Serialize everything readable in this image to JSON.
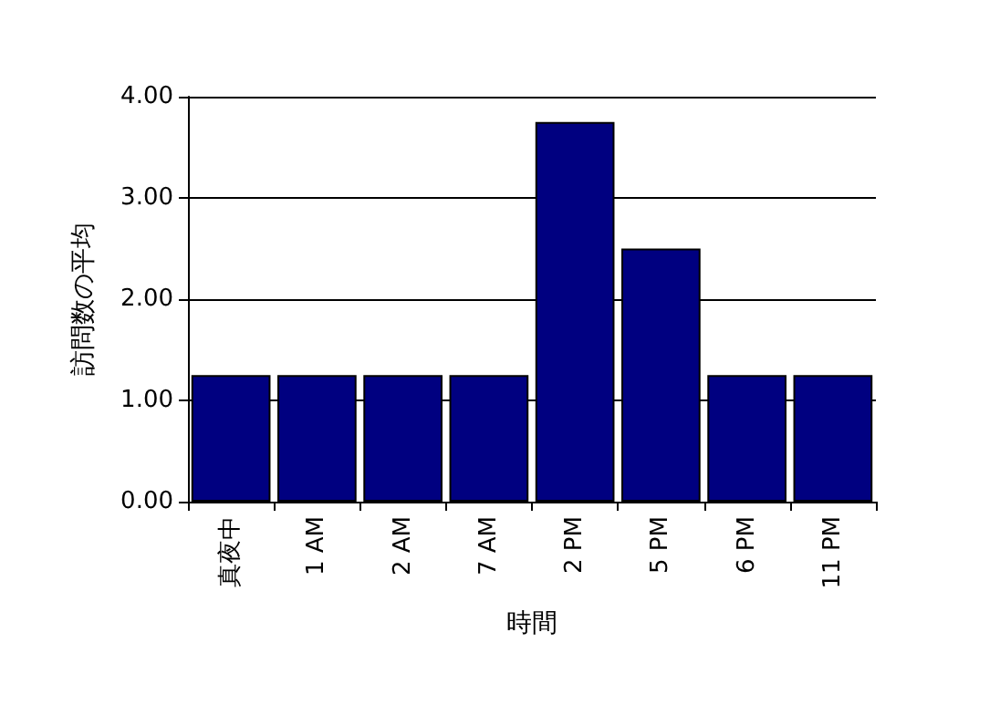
{
  "chart_data": {
    "type": "bar",
    "xlabel": "時間",
    "ylabel": "訪問数の平均",
    "categories": [
      "真夜中",
      "1 AM",
      "2 AM",
      "7 AM",
      "2 PM",
      "5 PM",
      "6 PM",
      "11 PM"
    ],
    "values": [
      1.25,
      1.25,
      1.25,
      1.25,
      3.75,
      2.5,
      1.25,
      1.25
    ],
    "color": "#000080",
    "ylim": [
      0,
      4
    ],
    "yticks": [
      {
        "value": 0,
        "label": "0.00"
      },
      {
        "value": 1,
        "label": "1.00"
      },
      {
        "value": 2,
        "label": "2.00"
      },
      {
        "value": 3,
        "label": "3.00"
      },
      {
        "value": 4,
        "label": "4.00"
      }
    ],
    "grid": "y"
  }
}
